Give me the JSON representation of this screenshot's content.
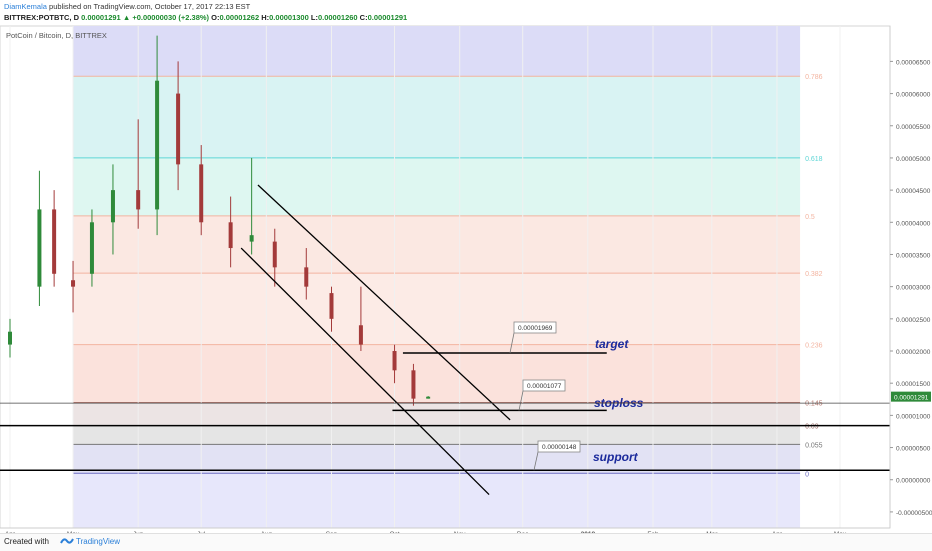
{
  "header": {
    "author": "DiamKemala",
    "published_text": " published on TradingView.com, October 17, 2017 22:13 EST",
    "ticker": "BITTREX:POTBTC, D",
    "last_price": "0.00001291",
    "change": "▲ +0.00000030 (+2.38%)",
    "o_label": "O:",
    "o_value": "0.00001262",
    "h_label": "H:",
    "h_value": "0.00001300",
    "l_label": "L:",
    "l_value": "0.00001260",
    "c_label": "C:",
    "c_value": "0.00001291"
  },
  "chart_data": {
    "type": "candlestick",
    "title": "PotCoin / Bitcoin, D, BITTREX",
    "y_tick_labels": [
      "0.00006500",
      "0.00006000",
      "0.00005500",
      "0.00005000",
      "0.00004500",
      "0.00004000",
      "0.00003500",
      "0.00003000",
      "0.00002500",
      "0.00002000",
      "0.00001500",
      "0.00001000",
      "0.00000500",
      "0.00000000",
      "-0.00000500"
    ],
    "y_ticks": [
      6.5e-05,
      6e-05,
      5.5e-05,
      5e-05,
      4.5e-05,
      4e-05,
      3.5e-05,
      3e-05,
      2.5e-05,
      2e-05,
      1.5e-05,
      1e-05,
      5e-06,
      0,
      -5e-06
    ],
    "ylim": [
      -7.5e-06,
      7.05e-05
    ],
    "x_tick_labels": [
      "Apr",
      "May",
      "Jun",
      "Jul",
      "Aug",
      "Sep",
      "Oct",
      "Nov",
      "Dec",
      "2018",
      "Feb",
      "Mar",
      "Apr",
      "May"
    ],
    "x_tick_dates": [
      "2017-04-01",
      "2017-05-01",
      "2017-06-01",
      "2017-07-01",
      "2017-08-01",
      "2017-09-01",
      "2017-10-01",
      "2017-11-01",
      "2017-12-01",
      "2018-01-01",
      "2018-02-01",
      "2018-03-01",
      "2018-04-01",
      "2018-05-01"
    ],
    "last_price": 1.291e-05,
    "last_price_label": "0.00001291",
    "fibonacci": {
      "levels": [
        {
          "label": "0.786",
          "price": 6.27e-05
        },
        {
          "label": "0.618",
          "price": 5e-05
        },
        {
          "label": "0.5",
          "price": 4.1e-05
        },
        {
          "label": "0.382",
          "price": 3.21e-05
        },
        {
          "label": "0.236",
          "price": 2.1e-05
        },
        {
          "label": "0.145",
          "price": 1.2e-05
        },
        {
          "label": "0.09",
          "price": 8.4e-06
        },
        {
          "label": "0.055",
          "price": 5.5e-06
        },
        {
          "label": "0",
          "price": 1e-06
        }
      ]
    },
    "annotations": [
      {
        "price_label": "0.00001969",
        "text": "target",
        "price": 1.969e-05
      },
      {
        "price_label": "0.00001077",
        "text": "stoploss",
        "price": 1.077e-05
      },
      {
        "price_label": "0.00000148",
        "text": "support",
        "price": 1.48e-06
      }
    ],
    "ohlc": [
      [
        "2017-04-01",
        2.1e-05,
        2.5e-05,
        1.9e-05,
        2.3e-05
      ],
      [
        "2017-04-15",
        3e-05,
        4.8e-05,
        2.7e-05,
        4.2e-05
      ],
      [
        "2017-04-22",
        4.2e-05,
        4.5e-05,
        3e-05,
        3.2e-05
      ],
      [
        "2017-05-01",
        3.1e-05,
        3.4e-05,
        2.6e-05,
        3e-05
      ],
      [
        "2017-05-10",
        3.2e-05,
        4.2e-05,
        3e-05,
        4e-05
      ],
      [
        "2017-05-20",
        4e-05,
        4.9e-05,
        3.5e-05,
        4.5e-05
      ],
      [
        "2017-06-01",
        4.5e-05,
        5.6e-05,
        3.9e-05,
        4.2e-05
      ],
      [
        "2017-06-10",
        4.2e-05,
        6.9e-05,
        3.8e-05,
        6.2e-05
      ],
      [
        "2017-06-20",
        6e-05,
        6.5e-05,
        4.5e-05,
        4.9e-05
      ],
      [
        "2017-07-01",
        4.9e-05,
        5.2e-05,
        3.8e-05,
        4e-05
      ],
      [
        "2017-07-15",
        4e-05,
        4.4e-05,
        3.3e-05,
        3.6e-05
      ],
      [
        "2017-07-25",
        3.7e-05,
        5e-05,
        3.5e-05,
        3.8e-05
      ],
      [
        "2017-08-05",
        3.7e-05,
        3.9e-05,
        3e-05,
        3.3e-05
      ],
      [
        "2017-08-20",
        3.3e-05,
        3.6e-05,
        2.8e-05,
        3e-05
      ],
      [
        "2017-09-01",
        2.9e-05,
        3e-05,
        2.3e-05,
        2.5e-05
      ],
      [
        "2017-09-15",
        2.4e-05,
        3e-05,
        2e-05,
        2.1e-05
      ],
      [
        "2017-10-01",
        2e-05,
        2.1e-05,
        1.5e-05,
        1.7e-05
      ],
      [
        "2017-10-10",
        1.7e-05,
        1.8e-05,
        1.15e-05,
        1.26e-05
      ],
      [
        "2017-10-17",
        1.26e-05,
        1.3e-05,
        1.26e-05,
        1.29e-05
      ]
    ]
  }
}
